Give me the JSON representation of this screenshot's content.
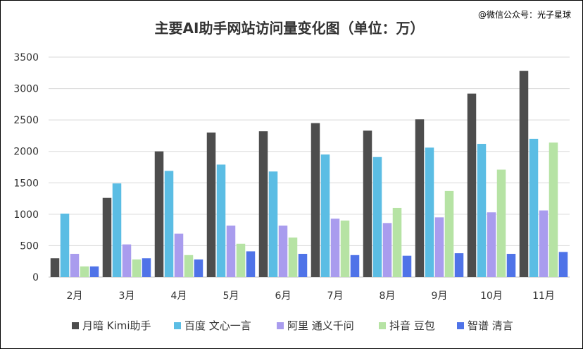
{
  "watermark": "@微信公众号：光子星球",
  "chart_data": {
    "type": "bar",
    "title": "主要AI助手网站访问量变化图（单位：万）",
    "xlabel": "",
    "ylabel": "",
    "ylim": [
      0,
      3500
    ],
    "yticks": [
      0,
      500,
      1000,
      1500,
      2000,
      2500,
      3000,
      3500
    ],
    "grid": true,
    "legend_position": "bottom",
    "categories": [
      "2月",
      "3月",
      "4月",
      "5月",
      "6月",
      "7月",
      "8月",
      "9月",
      "10月",
      "11月"
    ],
    "series": [
      {
        "name": "月暗 Kimi助手",
        "color": "#4d4d4d",
        "values": [
          300,
          1260,
          2000,
          2300,
          2320,
          2450,
          2330,
          2510,
          2920,
          3280
        ]
      },
      {
        "name": "百度 文心一言",
        "color": "#5bbde4",
        "values": [
          1010,
          1490,
          1690,
          1790,
          1680,
          1950,
          1910,
          2060,
          2120,
          2200
        ]
      },
      {
        "name": "阿里 通义千问",
        "color": "#a99cee",
        "values": [
          370,
          520,
          690,
          820,
          820,
          930,
          860,
          950,
          1030,
          1060
        ]
      },
      {
        "name": "抖音 豆包",
        "color": "#b6e3a4",
        "values": [
          170,
          280,
          350,
          530,
          630,
          900,
          1100,
          1370,
          1710,
          2140
        ]
      },
      {
        "name": "智谱 清言",
        "color": "#4f73e8",
        "values": [
          170,
          300,
          280,
          410,
          370,
          350,
          340,
          380,
          370,
          400
        ]
      }
    ]
  }
}
